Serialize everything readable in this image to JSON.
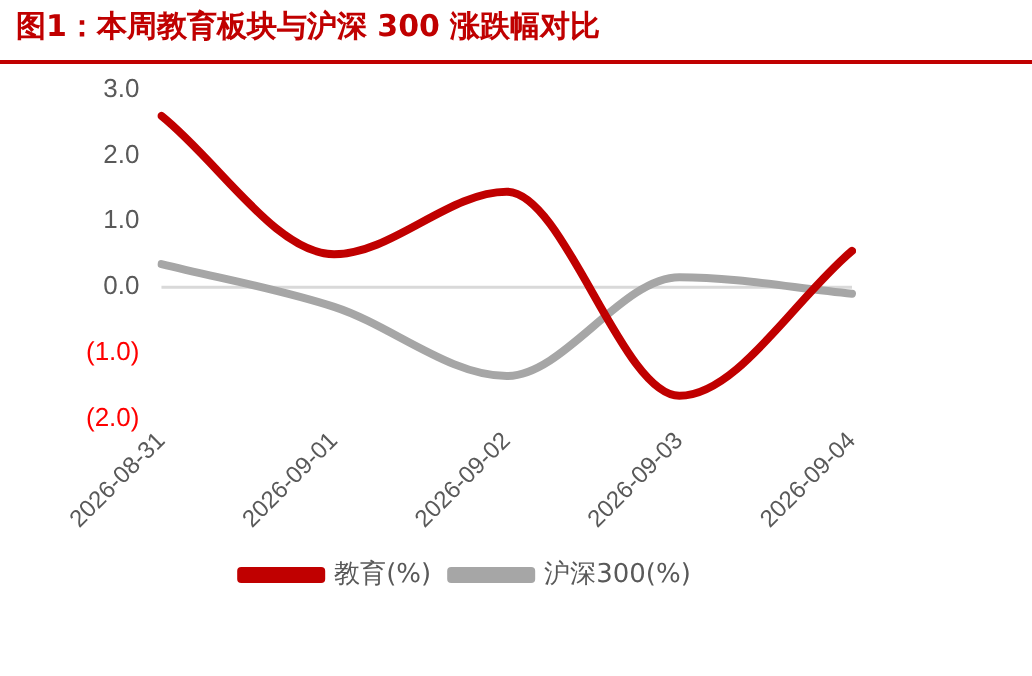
{
  "chart_data": {
    "type": "line",
    "title": "图1：本周教育板块与沪深 300 涨跌幅对比",
    "categories": [
      "2026-08-31",
      "2026-09-01",
      "2026-09-02",
      "2026-09-03",
      "2026-09-04"
    ],
    "series": [
      {
        "name": "教育(%)",
        "color": "#c00000",
        "values": [
          2.6,
          0.5,
          1.45,
          -1.65,
          0.55
        ]
      },
      {
        "name": "沪深300(%)",
        "color": "#a6a6a6",
        "values": [
          0.35,
          -0.3,
          -1.35,
          0.15,
          -0.1
        ]
      }
    ],
    "ylim": [
      -2,
      3
    ],
    "yticks": [
      {
        "value": -2,
        "label": "(2.0)"
      },
      {
        "value": -1,
        "label": "(1.0)"
      },
      {
        "value": 0,
        "label": "0.0"
      },
      {
        "value": 1,
        "label": "1.0"
      },
      {
        "value": 2,
        "label": "2.0"
      },
      {
        "value": 3,
        "label": "3.0"
      }
    ],
    "ref_lines": [
      {
        "axis": "y",
        "value": 0,
        "color": "#d9d9d9"
      }
    ],
    "grid": false,
    "legend": "bottom",
    "marker": "none",
    "line_style": "solid"
  }
}
